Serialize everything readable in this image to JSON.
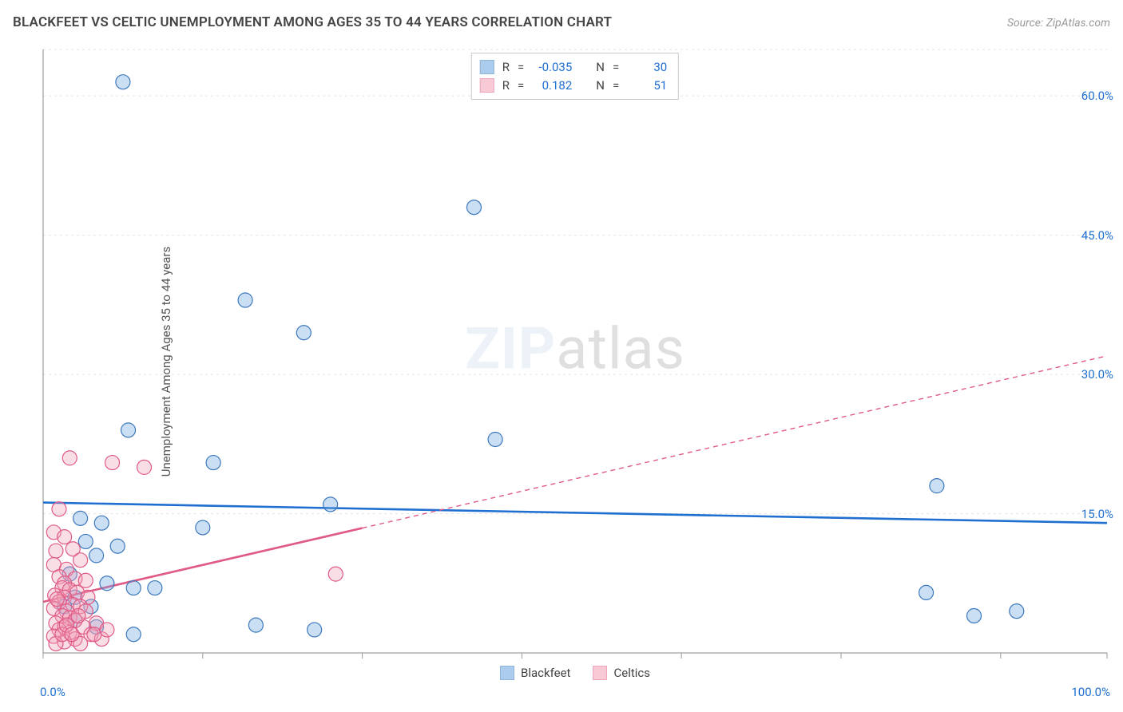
{
  "title": "BLACKFEET VS CELTIC UNEMPLOYMENT AMONG AGES 35 TO 44 YEARS CORRELATION CHART",
  "source_prefix": "Source: ",
  "source": "ZipAtlas.com",
  "ylabel": "Unemployment Among Ages 35 to 44 years",
  "watermark": {
    "bold": "ZIP",
    "rest": "atlas"
  },
  "chart": {
    "type": "scatter",
    "background_color": "#ffffff",
    "grid_color": "#e3e3e3",
    "axis_color": "#888888",
    "xlim": [
      0,
      100
    ],
    "ylim": [
      0,
      65
    ],
    "x_ticks": [
      0,
      15,
      30,
      45,
      60,
      75,
      90,
      100
    ],
    "y_ticks": [
      15,
      30,
      45,
      60
    ],
    "y_tick_labels": [
      "15.0%",
      "30.0%",
      "45.0%",
      "60.0%"
    ],
    "x_min_label": "0.0%",
    "x_max_label": "100.0%",
    "x_tick_color": "#999",
    "marker_radius": 9,
    "marker_stroke_width": 1.2,
    "marker_fill_opacity": 0.35,
    "trend_line_width": 2.6,
    "trend_dash": "6 5"
  },
  "series": [
    {
      "name": "Blackfeet",
      "color": "#6aa3e0",
      "stroke": "#3c78bd",
      "line_color": "#1f6fd1",
      "stats": {
        "R": "-0.035",
        "N": "30"
      },
      "value_color": "#1f6fd1",
      "trend": {
        "x1": 0,
        "y1": 16.2,
        "x2": 100,
        "y2": 14.0,
        "extent_x": 100
      },
      "points": [
        [
          7.5,
          61.5
        ],
        [
          40.5,
          48.0
        ],
        [
          19.0,
          38.0
        ],
        [
          24.5,
          34.5
        ],
        [
          42.5,
          23.0
        ],
        [
          8.0,
          24.0
        ],
        [
          16.0,
          20.5
        ],
        [
          27.0,
          16.0
        ],
        [
          84.0,
          18.0
        ],
        [
          83.0,
          6.5
        ],
        [
          87.5,
          4.0
        ],
        [
          91.5,
          4.5
        ],
        [
          20.0,
          3.0
        ],
        [
          25.5,
          2.5
        ],
        [
          8.5,
          2.0
        ],
        [
          15.0,
          13.5
        ],
        [
          5.5,
          14.0
        ],
        [
          4.0,
          12.0
        ],
        [
          6.0,
          7.5
        ],
        [
          8.5,
          7.0
        ],
        [
          10.5,
          7.0
        ],
        [
          2.5,
          8.5
        ],
        [
          3.0,
          6.0
        ],
        [
          4.5,
          5.0
        ],
        [
          3.0,
          3.5
        ],
        [
          5.0,
          2.8
        ],
        [
          5.0,
          10.5
        ],
        [
          3.5,
          14.5
        ],
        [
          7.0,
          11.5
        ],
        [
          2.0,
          5.0
        ]
      ]
    },
    {
      "name": "Celtics",
      "color": "#f1a0b6",
      "stroke": "#e05a86",
      "line_color": "#e05a86",
      "stats": {
        "R": "0.182",
        "N": "51"
      },
      "value_color": "#1f6fd1",
      "trend": {
        "x1": 0,
        "y1": 5.5,
        "x2": 100,
        "y2": 32.0,
        "extent_x": 30
      },
      "points": [
        [
          2.5,
          21.0
        ],
        [
          6.5,
          20.5
        ],
        [
          9.5,
          20.0
        ],
        [
          27.5,
          8.5
        ],
        [
          1.5,
          15.5
        ],
        [
          1.0,
          13.0
        ],
        [
          2.0,
          12.5
        ],
        [
          1.2,
          11.0
        ],
        [
          2.8,
          11.2
        ],
        [
          3.5,
          10.0
        ],
        [
          1.0,
          9.5
        ],
        [
          2.2,
          9.0
        ],
        [
          1.5,
          8.2
        ],
        [
          3.0,
          8.0
        ],
        [
          2.0,
          7.5
        ],
        [
          4.0,
          7.8
        ],
        [
          1.8,
          7.0
        ],
        [
          2.5,
          6.8
        ],
        [
          3.2,
          6.5
        ],
        [
          1.1,
          6.2
        ],
        [
          2.0,
          6.0
        ],
        [
          4.2,
          6.0
        ],
        [
          1.5,
          5.5
        ],
        [
          2.8,
          5.2
        ],
        [
          3.5,
          5.0
        ],
        [
          1.0,
          4.8
        ],
        [
          2.2,
          4.5
        ],
        [
          4.0,
          4.5
        ],
        [
          1.8,
          4.0
        ],
        [
          2.5,
          3.8
        ],
        [
          3.0,
          3.5
        ],
        [
          1.2,
          3.2
        ],
        [
          5.0,
          3.2
        ],
        [
          2.0,
          2.8
        ],
        [
          3.8,
          2.8
        ],
        [
          1.5,
          2.5
        ],
        [
          2.5,
          2.2
        ],
        [
          4.5,
          2.0
        ],
        [
          1.0,
          1.8
        ],
        [
          3.0,
          1.5
        ],
        [
          2.0,
          1.2
        ],
        [
          5.5,
          1.5
        ],
        [
          1.2,
          1.0
        ],
        [
          3.5,
          1.0
        ],
        [
          4.8,
          2.0
        ],
        [
          6.0,
          2.5
        ],
        [
          1.8,
          2.0
        ],
        [
          2.2,
          3.0
        ],
        [
          1.3,
          5.8
        ],
        [
          3.3,
          4.0
        ],
        [
          2.7,
          2.0
        ]
      ]
    }
  ],
  "legend_labels": {
    "R": "R",
    "N": "N",
    "eq": "="
  }
}
